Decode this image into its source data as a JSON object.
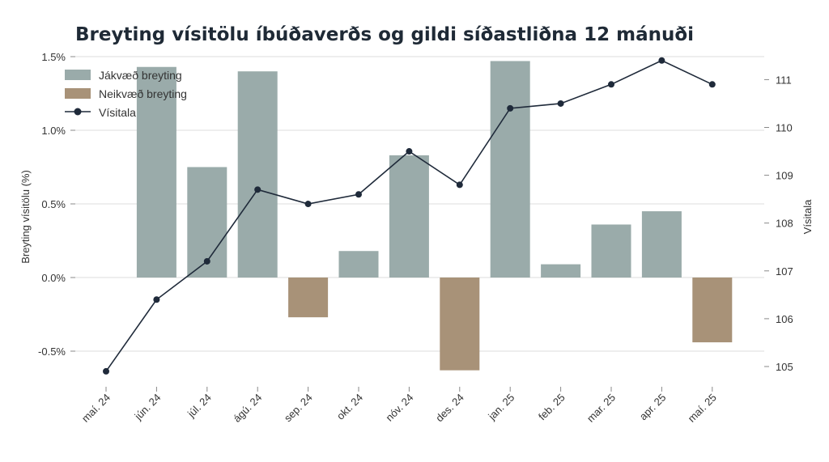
{
  "chart_data": {
    "type": "bar",
    "title": "Breyting vísitölu íbúðaverðs og gildi síðastliðna 12 mánuði",
    "categories": [
      "maí. 24",
      "jún. 24",
      "júl. 24",
      "ágú. 24",
      "sep. 24",
      "okt. 24",
      "nóv. 24",
      "des. 24",
      "jan. 25",
      "feb. 25",
      "mar. 25",
      "apr. 25",
      "maí. 25"
    ],
    "bar_values": [
      null,
      1.43,
      0.75,
      1.4,
      -0.27,
      0.18,
      0.83,
      -0.63,
      1.47,
      0.09,
      0.36,
      0.45,
      -0.44
    ],
    "line_values": [
      104.9,
      106.4,
      107.2,
      108.7,
      108.4,
      108.6,
      109.5,
      108.8,
      110.4,
      110.5,
      110.9,
      111.4,
      110.9
    ],
    "ylabel_left": "Breyting vísitölu (%)",
    "ylabel_right": "Vísitala",
    "left_ticks": [
      "-0.5%",
      "0.0%",
      "0.5%",
      "1.0%",
      "1.5%"
    ],
    "left_tick_values": [
      -0.5,
      0,
      0.5,
      1.0,
      1.5
    ],
    "right_ticks": [
      "105",
      "106",
      "107",
      "108",
      "109",
      "110",
      "111"
    ],
    "right_tick_values": [
      105,
      106,
      107,
      108,
      109,
      110,
      111
    ],
    "ylim_left": [
      -0.7,
      1.5
    ],
    "ylim_right": [
      104.5,
      111.5
    ],
    "grid": true,
    "legend": {
      "placement": "top-left",
      "positive_label": "Jákvæð breyting",
      "negative_label": "Neikvæð breyting",
      "line_label": "Vísitala"
    },
    "colors": {
      "positive": "#9aabaa",
      "negative": "#a89278",
      "line": "#1f2a3a"
    }
  }
}
